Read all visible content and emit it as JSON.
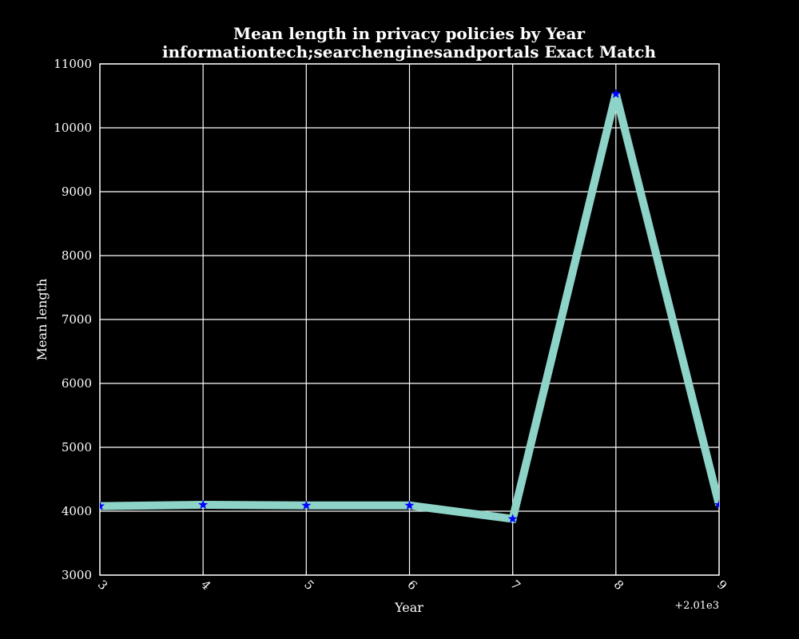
{
  "chart_data": {
    "type": "line",
    "title": "Mean length in privacy policies by Year",
    "subtitle": "informationtech;searchenginesandportals Exact Match",
    "xlabel": "Year",
    "ylabel": "Mean length",
    "x_offset_label": "+2.01e3",
    "x": [
      3,
      4,
      5,
      6,
      7,
      8,
      9
    ],
    "x_tick_labels": [
      "3",
      "4",
      "5",
      "6",
      "7",
      "8",
      "9"
    ],
    "xlim": [
      3,
      9
    ],
    "ylim": [
      3000,
      11000
    ],
    "y_ticks": [
      3000,
      4000,
      5000,
      6000,
      7000,
      8000,
      9000,
      10000,
      11000
    ],
    "y_tick_labels": [
      "3000",
      "4000",
      "5000",
      "6000",
      "7000",
      "8000",
      "9000",
      "10000",
      "11000"
    ],
    "grid": true,
    "series": [
      {
        "values": [
          4080,
          4100,
          4090,
          4090,
          3880,
          10530,
          4100
        ],
        "line_color": "#8dd3c7",
        "marker": "star",
        "marker_color": "#0000ff"
      }
    ]
  },
  "colors": {
    "background": "#000000",
    "axes": "#ffffff",
    "grid": "#ffffff",
    "text": "#ffffff"
  }
}
